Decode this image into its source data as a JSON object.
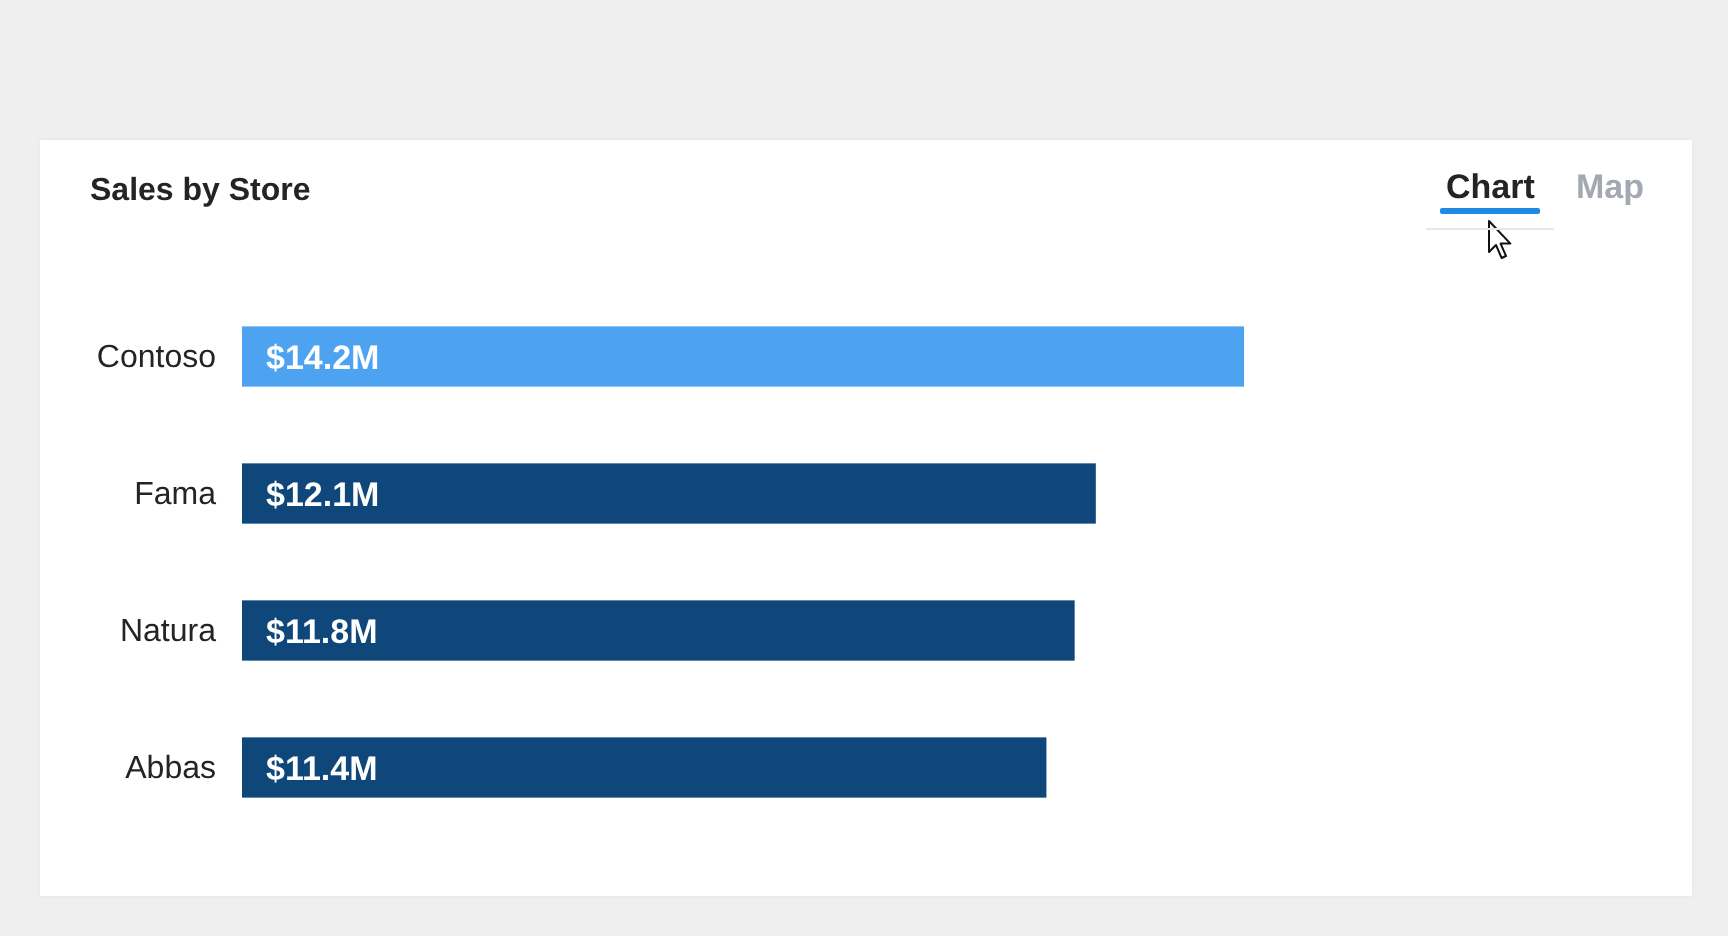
{
  "chart_data": {
    "type": "bar",
    "orientation": "horizontal",
    "title": "Sales by Store",
    "categories": [
      "Contoso",
      "Fama",
      "Natura",
      "Abbas"
    ],
    "values": [
      14.2,
      12.1,
      11.8,
      11.4
    ],
    "colors": [
      "#4ea3f1",
      "#0f477a",
      "#0f477a",
      "#0f477a"
    ],
    "value_labels": [
      "$14.2M",
      "$12.1M",
      "$11.8M",
      "$11.4M"
    ],
    "tick_labels": "y",
    "annotations": [
      "Chart",
      "Map"
    ]
  }
}
